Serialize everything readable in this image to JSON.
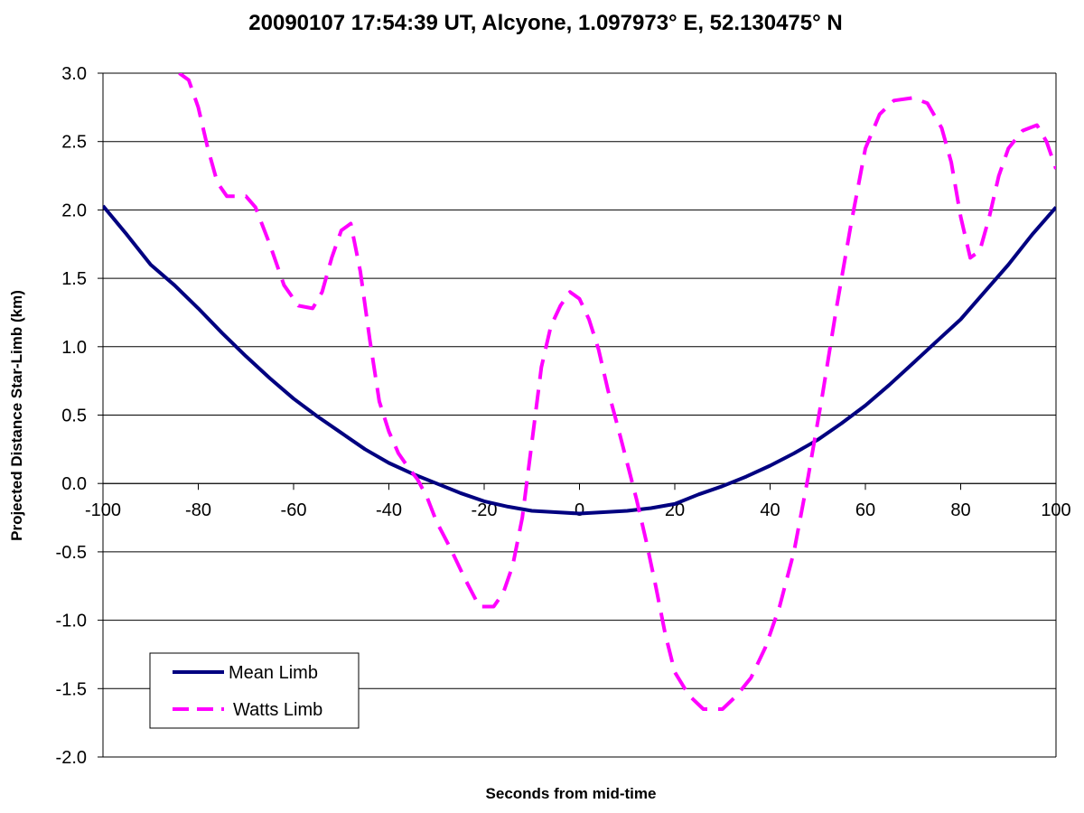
{
  "chart_data": {
    "type": "line",
    "title": "20090107 17:54:39 UT, Alcyone, 1.097973° E, 52.130475° N",
    "xlabel": "Seconds from mid-time",
    "ylabel": "Projected Distance Star-Limb (km)",
    "xlim": [
      -100,
      100
    ],
    "ylim": [
      -2.0,
      3.0
    ],
    "x_ticks": [
      "-100",
      "-80",
      "-60",
      "-40",
      "-20",
      "0",
      "20",
      "40",
      "60",
      "80",
      "100"
    ],
    "y_ticks": [
      "3.0",
      "2.5",
      "2.0",
      "1.5",
      "1.0",
      "0.5",
      "0.0",
      "-0.5",
      "-1.0",
      "-1.5",
      "-2.0"
    ],
    "grid": "horizontal",
    "legend_position": "bottom-left",
    "series": [
      {
        "name": "Mean Limb",
        "color": "#000080",
        "style": "solid",
        "points": [
          [
            -100,
            2.03
          ],
          [
            -95,
            1.82
          ],
          [
            -90,
            1.6
          ],
          [
            -85,
            1.45
          ],
          [
            -80,
            1.28
          ],
          [
            -75,
            1.1
          ],
          [
            -70,
            0.93
          ],
          [
            -65,
            0.77
          ],
          [
            -60,
            0.62
          ],
          [
            -55,
            0.49
          ],
          [
            -50,
            0.37
          ],
          [
            -45,
            0.25
          ],
          [
            -40,
            0.15
          ],
          [
            -35,
            0.07
          ],
          [
            -30,
            0.0
          ],
          [
            -25,
            -0.07
          ],
          [
            -20,
            -0.13
          ],
          [
            -15,
            -0.17
          ],
          [
            -10,
            -0.2
          ],
          [
            -5,
            -0.21
          ],
          [
            0,
            -0.22
          ],
          [
            5,
            -0.21
          ],
          [
            10,
            -0.2
          ],
          [
            15,
            -0.18
          ],
          [
            20,
            -0.15
          ],
          [
            25,
            -0.08
          ],
          [
            30,
            -0.02
          ],
          [
            35,
            0.05
          ],
          [
            40,
            0.13
          ],
          [
            45,
            0.22
          ],
          [
            50,
            0.32
          ],
          [
            55,
            0.44
          ],
          [
            60,
            0.57
          ],
          [
            65,
            0.72
          ],
          [
            70,
            0.88
          ],
          [
            75,
            1.04
          ],
          [
            80,
            1.2
          ],
          [
            85,
            1.4
          ],
          [
            90,
            1.6
          ],
          [
            95,
            1.82
          ],
          [
            100,
            2.02
          ]
        ]
      },
      {
        "name": "Watts Limb",
        "color": "#ff00ff",
        "style": "dashed",
        "points": [
          [
            -84,
            3.0
          ],
          [
            -82,
            2.95
          ],
          [
            -80,
            2.75
          ],
          [
            -78,
            2.45
          ],
          [
            -76,
            2.2
          ],
          [
            -74,
            2.1
          ],
          [
            -70,
            2.1
          ],
          [
            -68,
            2.02
          ],
          [
            -65,
            1.75
          ],
          [
            -62,
            1.45
          ],
          [
            -59,
            1.3
          ],
          [
            -56,
            1.28
          ],
          [
            -54,
            1.4
          ],
          [
            -52,
            1.65
          ],
          [
            -50,
            1.85
          ],
          [
            -48,
            1.9
          ],
          [
            -46,
            1.55
          ],
          [
            -44,
            1.05
          ],
          [
            -42,
            0.6
          ],
          [
            -40,
            0.38
          ],
          [
            -38,
            0.22
          ],
          [
            -36,
            0.12
          ],
          [
            -34,
            0.03
          ],
          [
            -32,
            -0.1
          ],
          [
            -30,
            -0.28
          ],
          [
            -27,
            -0.48
          ],
          [
            -24,
            -0.7
          ],
          [
            -21,
            -0.9
          ],
          [
            -18,
            -0.9
          ],
          [
            -16,
            -0.8
          ],
          [
            -14,
            -0.6
          ],
          [
            -12,
            -0.25
          ],
          [
            -10,
            0.3
          ],
          [
            -8,
            0.85
          ],
          [
            -6,
            1.15
          ],
          [
            -4,
            1.3
          ],
          [
            -2,
            1.4
          ],
          [
            0,
            1.35
          ],
          [
            2,
            1.2
          ],
          [
            4,
            0.98
          ],
          [
            6,
            0.68
          ],
          [
            8,
            0.42
          ],
          [
            10,
            0.15
          ],
          [
            12,
            -0.12
          ],
          [
            14,
            -0.42
          ],
          [
            16,
            -0.75
          ],
          [
            18,
            -1.1
          ],
          [
            20,
            -1.38
          ],
          [
            23,
            -1.55
          ],
          [
            26,
            -1.65
          ],
          [
            30,
            -1.65
          ],
          [
            33,
            -1.55
          ],
          [
            36,
            -1.42
          ],
          [
            39,
            -1.2
          ],
          [
            42,
            -0.9
          ],
          [
            45,
            -0.5
          ],
          [
            48,
            0.05
          ],
          [
            51,
            0.65
          ],
          [
            54,
            1.3
          ],
          [
            57,
            1.9
          ],
          [
            60,
            2.45
          ],
          [
            63,
            2.7
          ],
          [
            66,
            2.8
          ],
          [
            70,
            2.82
          ],
          [
            73,
            2.78
          ],
          [
            76,
            2.6
          ],
          [
            78,
            2.35
          ],
          [
            80,
            1.95
          ],
          [
            82,
            1.65
          ],
          [
            84,
            1.7
          ],
          [
            86,
            1.95
          ],
          [
            88,
            2.25
          ],
          [
            90,
            2.45
          ],
          [
            93,
            2.58
          ],
          [
            96,
            2.62
          ],
          [
            98,
            2.5
          ],
          [
            100,
            2.3
          ]
        ]
      }
    ]
  }
}
